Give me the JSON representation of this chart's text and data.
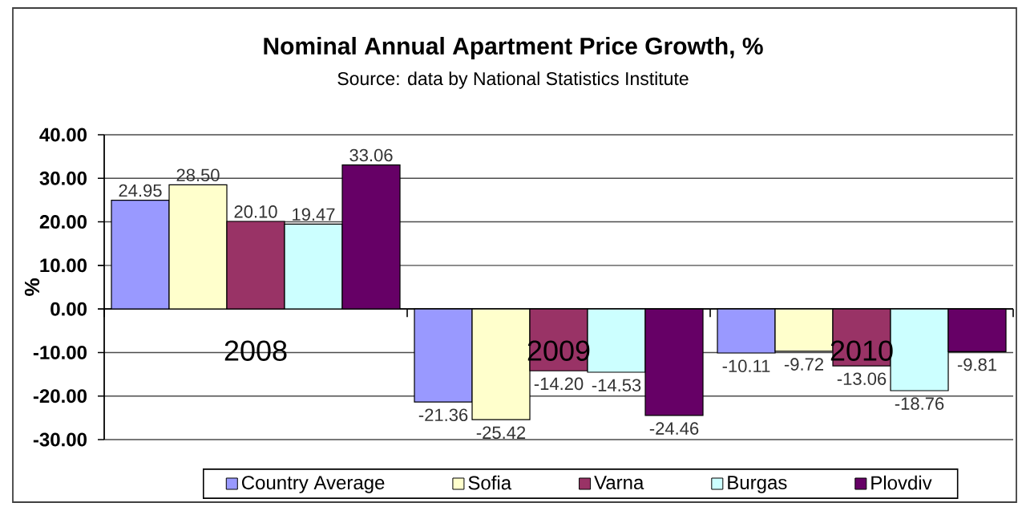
{
  "chart_data": {
    "type": "bar",
    "title": "Nominal Annual Apartment Price Growth, %",
    "subtitle": "Source: data by National Statistics Institute",
    "ylabel": "%",
    "categories": [
      "2008",
      "2009",
      "2010"
    ],
    "series": [
      {
        "name": "Country Average",
        "color": "#9999ff",
        "values": [
          24.95,
          -21.36,
          -10.11
        ],
        "value_labels": [
          "24.95",
          "-21.36",
          "-10.11"
        ]
      },
      {
        "name": "Sofia",
        "color": "#ffffcc",
        "values": [
          28.5,
          -25.42,
          -9.72
        ],
        "value_labels": [
          "28.50",
          "-25.42",
          "-9.72"
        ]
      },
      {
        "name": "Varna",
        "color": "#993366",
        "values": [
          20.1,
          -14.2,
          -13.06
        ],
        "value_labels": [
          "20.10",
          "-14.20",
          "-13.06"
        ]
      },
      {
        "name": "Burgas",
        "color": "#ccffff",
        "values": [
          19.47,
          -14.53,
          -18.76
        ],
        "value_labels": [
          "19.47",
          "-14.53",
          "-18.76"
        ]
      },
      {
        "name": "Plovdiv",
        "color": "#660066",
        "values": [
          33.06,
          -24.46,
          -9.81
        ],
        "value_labels": [
          "33.06",
          "-24.46",
          "-9.81"
        ]
      }
    ],
    "ylim": [
      -30,
      40
    ],
    "yticks": [
      {
        "value": -30,
        "label": "-30.00"
      },
      {
        "value": -20,
        "label": "-20.00"
      },
      {
        "value": -10,
        "label": "-10.00"
      },
      {
        "value": 0,
        "label": "0.00"
      },
      {
        "value": 10,
        "label": "10.00"
      },
      {
        "value": 20,
        "label": "20.00"
      },
      {
        "value": 30,
        "label": "30.00"
      },
      {
        "value": 40,
        "label": "40.00"
      }
    ],
    "grid": "y",
    "legend": "bottom"
  }
}
